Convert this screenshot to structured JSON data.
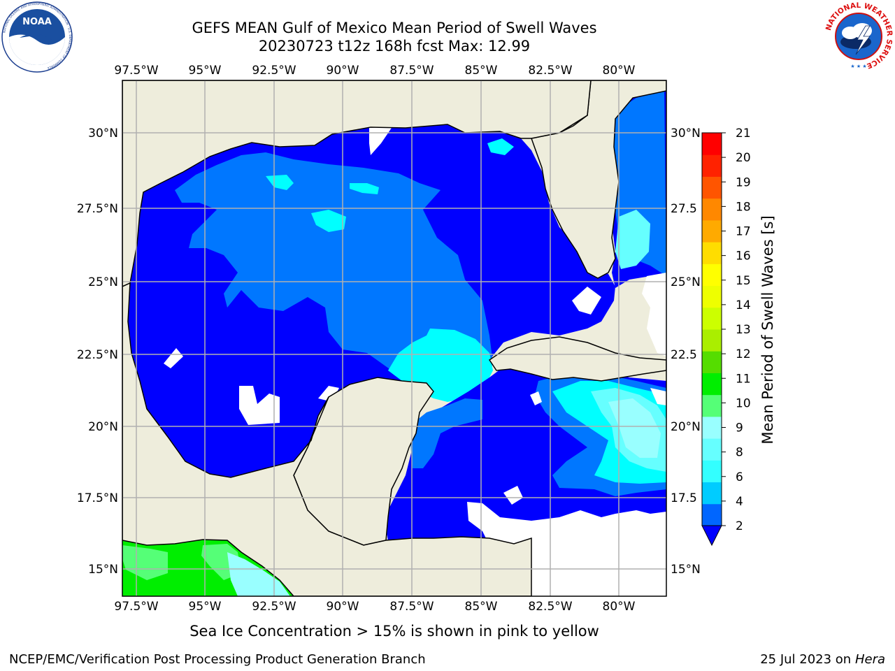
{
  "header": {
    "title_line1": "GEFS MEAN Gulf of Mexico Mean Period of Swell Waves",
    "title_line2": "20230723 t12z 168h fcst   Max: 12.99"
  },
  "logos": {
    "noaa_text": "NOAA",
    "noaa_ring_text": "NATIONAL OCEANIC AND ATMOSPHERIC ADMINISTRATION · U.S. DEPARTMENT OF COMMERCE",
    "nws_ring_text": "NATIONAL WEATHER SERVICE"
  },
  "map": {
    "lon_labels": [
      "97.5°W",
      "95°W",
      "92.5°W",
      "90°W",
      "87.5°W",
      "85°W",
      "82.5°W",
      "80°W"
    ],
    "lat_labels_left": [
      "30°N",
      "27.5°N",
      "25°N",
      "22.5°N",
      "20°N",
      "17.5°N",
      "15°N"
    ],
    "lat_labels_right": [
      "30°N",
      "27.5",
      "25°N",
      "22.5",
      "20°N",
      "17.5",
      "15°N"
    ]
  },
  "colorbar": {
    "label": "Mean Period of Swell Waves [s]",
    "ticks": [
      "2",
      "4",
      "6",
      "8",
      "9",
      "10",
      "11",
      "12",
      "13",
      "14",
      "15",
      "16",
      "17",
      "18",
      "19",
      "20",
      "21"
    ],
    "colors": [
      "#0066ff",
      "#00ccff",
      "#33ffff",
      "#66ffff",
      "#99ffff",
      "#55ff77",
      "#00ee00",
      "#55dd00",
      "#aaee00",
      "#ccff00",
      "#eeff00",
      "#ffff00",
      "#ffdd00",
      "#ffaa00",
      "#ff8800",
      "#ff5500",
      "#ff2200",
      "#ff0000"
    ],
    "under_color": "#0000ff"
  },
  "colors": {
    "land": "#eeeddc",
    "deep_blue": "#0000ff",
    "mid_blue": "#0077ff",
    "cyan": "#00ffff",
    "light_cyan": "#66ffff",
    "pale_cyan": "#99ffff",
    "green": "#00ee00",
    "light_green": "#55ff77"
  },
  "footer": {
    "ice_note": "Sea Ice Concentration > 15% is shown in pink to yellow",
    "credit": "NCEP/EMC/Verification Post Processing Product Generation Branch",
    "date": "25 Jul 2023 on ",
    "host": "Hera"
  }
}
